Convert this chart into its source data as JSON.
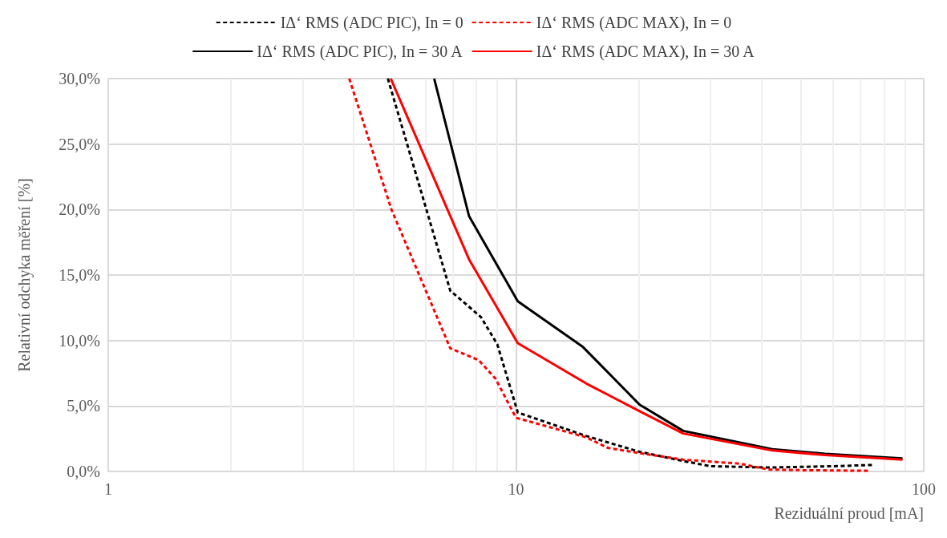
{
  "chart_data": {
    "type": "line",
    "xlabel": "Reziduální proud [mA]",
    "ylabel": "Relativní odchyka měření [%]",
    "log": "x",
    "grid": true,
    "legend": "top",
    "marker": "none",
    "xlim": [
      1,
      100
    ],
    "xticks": [
      1,
      10,
      100
    ],
    "ylim": [
      0,
      30
    ],
    "yticks": [
      {
        "value": 0,
        "label": "0,0%"
      },
      {
        "value": 5,
        "label": "5,0%"
      },
      {
        "value": 10,
        "label": "10,0%"
      },
      {
        "value": 15,
        "label": "15,0%"
      },
      {
        "value": 20,
        "label": "20,0%"
      },
      {
        "value": 25,
        "label": "25,0%"
      },
      {
        "value": 30,
        "label": "30,0%"
      }
    ],
    "series": [
      {
        "name": "IΔ‘ RMS (ADC PIC), In = 0",
        "color": "#000000",
        "line_style": "dashed",
        "x": [
          4.85,
          6.9,
          8.2,
          9.0,
          10.1,
          14.9,
          20.1,
          25.7,
          30,
          41.6,
          60,
          75.5
        ],
        "values": [
          30,
          13.8,
          11.8,
          9.7,
          4.5,
          2.7,
          1.5,
          0.8,
          0.4,
          0.3,
          0.4,
          0.5
        ]
      },
      {
        "name": "IΔ‘ RMS (ADC MAX), In = 0",
        "color": "#ff0000",
        "line_style": "dashed",
        "x": [
          3.9,
          4.95,
          6.9,
          8.1,
          8.9,
          10.0,
          14.9,
          16.8,
          20.1,
          25.7,
          35.3,
          41.6,
          50,
          74
        ],
        "values": [
          30,
          20,
          9.4,
          8.5,
          7.1,
          4.1,
          2.6,
          1.8,
          1.4,
          0.9,
          0.6,
          0.15,
          0.1,
          0.05
        ]
      },
      {
        "name": "IΔ‘ RMS (ADC PIC), In = 30 A",
        "color": "#000000",
        "line_style": "solid",
        "x": [
          6.3,
          7.67,
          10.1,
          14.6,
          20.1,
          25.7,
          42.5,
          57.3,
          88.7
        ],
        "values": [
          30,
          19.5,
          13.0,
          9.5,
          5.1,
          3.1,
          1.7,
          1.35,
          1.0
        ]
      },
      {
        "name": "IΔ‘ RMS (ADC MAX), In = 30 A",
        "color": "#ff0000",
        "line_style": "solid",
        "x": [
          4.93,
          7.67,
          10.1,
          14.9,
          20.1,
          25.7,
          42.5,
          57.3,
          88.7
        ],
        "values": [
          30,
          16.2,
          9.8,
          6.7,
          4.6,
          2.9,
          1.6,
          1.25,
          0.9
        ]
      }
    ]
  }
}
